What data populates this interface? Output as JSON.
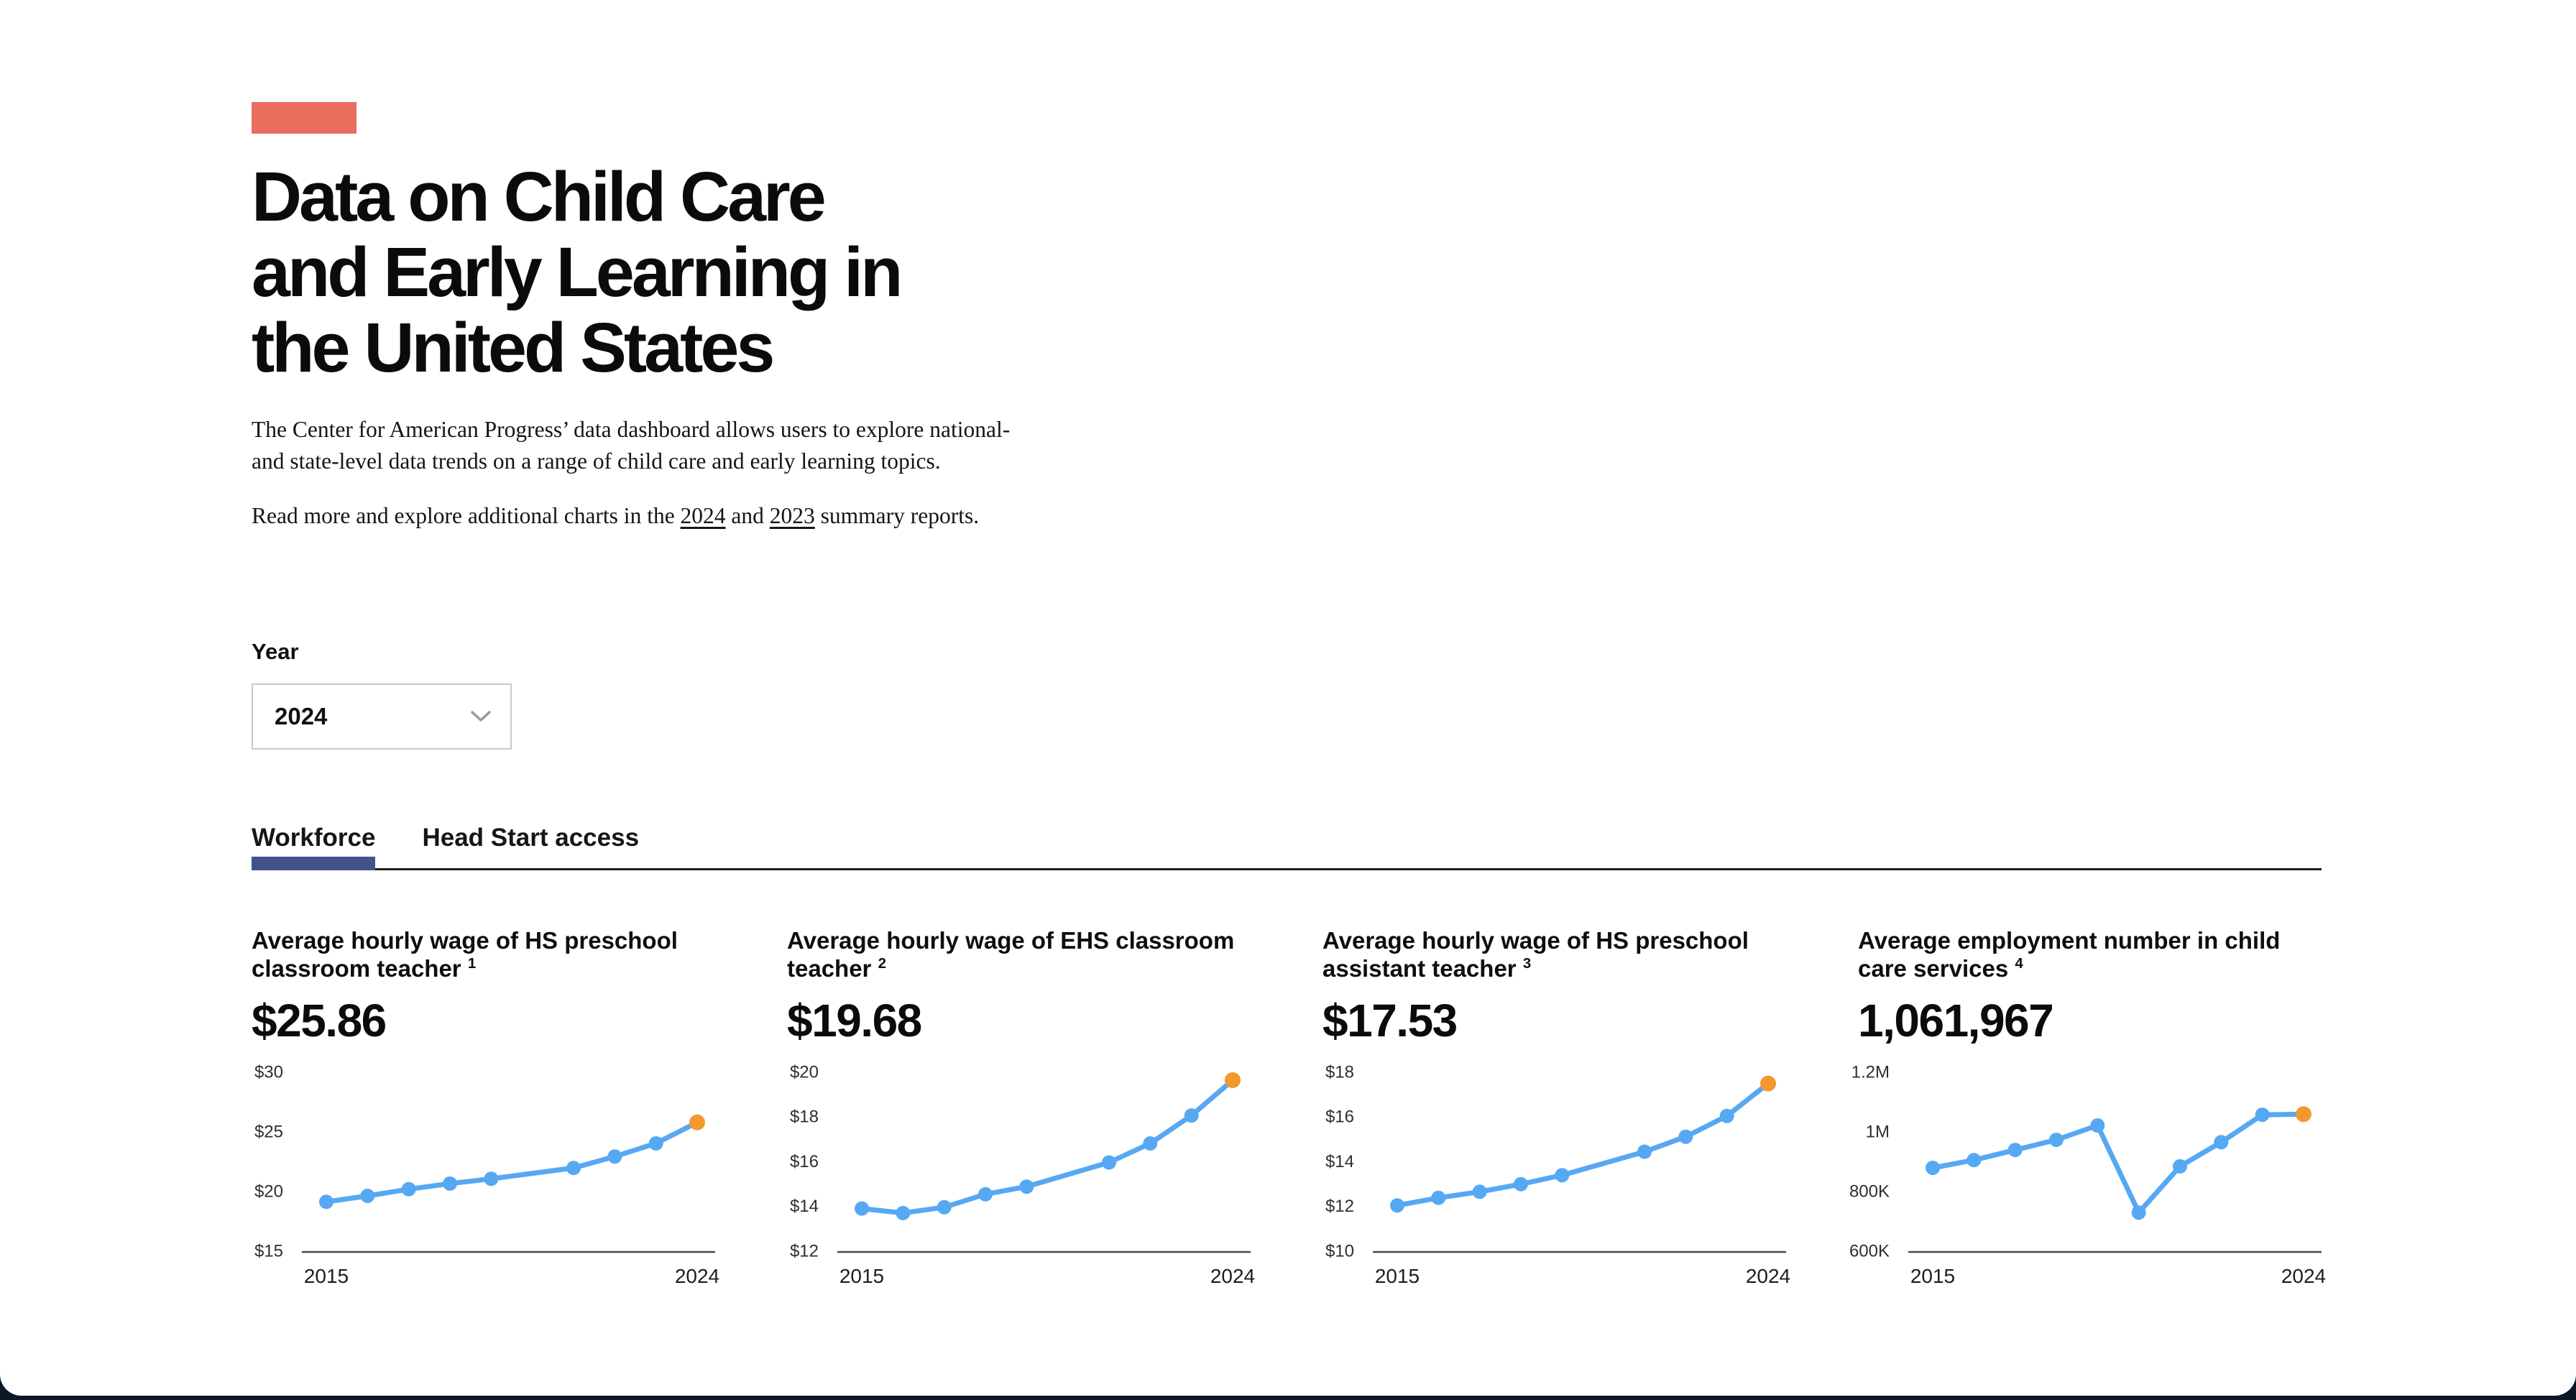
{
  "page": {
    "title_lines": [
      "Data on Child Care",
      "and Early Learning in",
      "the United States"
    ],
    "intro": "The Center for American Progress’ data dashboard allows users to explore national- and state-level data trends on a range of child care and early learning topics.",
    "read_more": {
      "prefix": "Read more and explore additional charts in the ",
      "link_2024": "2024",
      "mid": " and ",
      "link_2023": "2023",
      "suffix": " summary reports."
    },
    "year_filter": {
      "label": "Year",
      "selected": "2024"
    },
    "tabs": [
      {
        "label": "Workforce",
        "active": true
      },
      {
        "label": "Head Start access",
        "active": false
      }
    ]
  },
  "colors": {
    "accent_bar": "#E96E5E",
    "line": "#57A8F2",
    "last_point": "#F2982F",
    "tab_active_bar": "#41538A",
    "axis_line": "#4A4A4A",
    "page_background": "#FFFFFF",
    "outer_background": "#0D1826"
  },
  "chart_data": [
    {
      "type": "line",
      "title": "Average hourly wage of HS preschool classroom teacher",
      "footnote": "1",
      "value_display": "$25.86",
      "x": [
        2015,
        2016,
        2017,
        2018,
        2019,
        2020,
        2021,
        2022,
        2023,
        2024
      ],
      "values": [
        19.2,
        19.7,
        20.26,
        20.73,
        21.13,
        null,
        22.04,
        23.0,
        24.1,
        25.86
      ],
      "y_ticks": [
        "$30",
        "$25",
        "$20",
        "$15"
      ],
      "y_max": 30,
      "y_min": 15,
      "x_tick_labels": [
        "2015",
        "2024"
      ],
      "legend": "none",
      "grid": "off"
    },
    {
      "type": "line",
      "title": "Average hourly wage of EHS classroom teacher",
      "footnote": "2",
      "value_display": "$19.68",
      "x": [
        2015,
        2016,
        2017,
        2018,
        2019,
        2020,
        2021,
        2022,
        2023,
        2024
      ],
      "values": [
        13.94,
        13.74,
        14.0,
        14.58,
        14.92,
        null,
        16.0,
        16.85,
        18.1,
        19.68
      ],
      "y_ticks": [
        "$20",
        "$18",
        "$16",
        "$14",
        "$12"
      ],
      "y_max": 20,
      "y_min": 12,
      "x_tick_labels": [
        "2015",
        "2024"
      ],
      "legend": "none",
      "grid": "off"
    },
    {
      "type": "line",
      "title": "Average hourly wage of HS preschool assistant teacher",
      "footnote": "3",
      "value_display": "$17.53",
      "x": [
        2015,
        2016,
        2017,
        2018,
        2019,
        2020,
        2021,
        2022,
        2023,
        2024
      ],
      "values": [
        12.08,
        12.42,
        12.69,
        13.03,
        13.43,
        null,
        14.48,
        15.15,
        16.08,
        17.53
      ],
      "y_ticks": [
        "$18",
        "$16",
        "$14",
        "$12",
        "$10"
      ],
      "y_max": 18,
      "y_min": 10,
      "x_tick_labels": [
        "2015",
        "2024"
      ],
      "legend": "none",
      "grid": "off"
    },
    {
      "type": "line",
      "title": "Average employment number in child care services",
      "footnote": "4",
      "value_display": "1,061,967",
      "x": [
        2015,
        2016,
        2017,
        2018,
        2019,
        2020,
        2021,
        2022,
        2023,
        2024
      ],
      "values": [
        882000,
        908000,
        942000,
        976000,
        1024000,
        732000,
        887000,
        968000,
        1060000,
        1061967
      ],
      "y_ticks": [
        "1.2M",
        "1M",
        "800K",
        "600K"
      ],
      "y_max": 1200000,
      "y_min": 600000,
      "x_tick_labels": [
        "2015",
        "2024"
      ],
      "legend": "none",
      "grid": "off"
    }
  ]
}
